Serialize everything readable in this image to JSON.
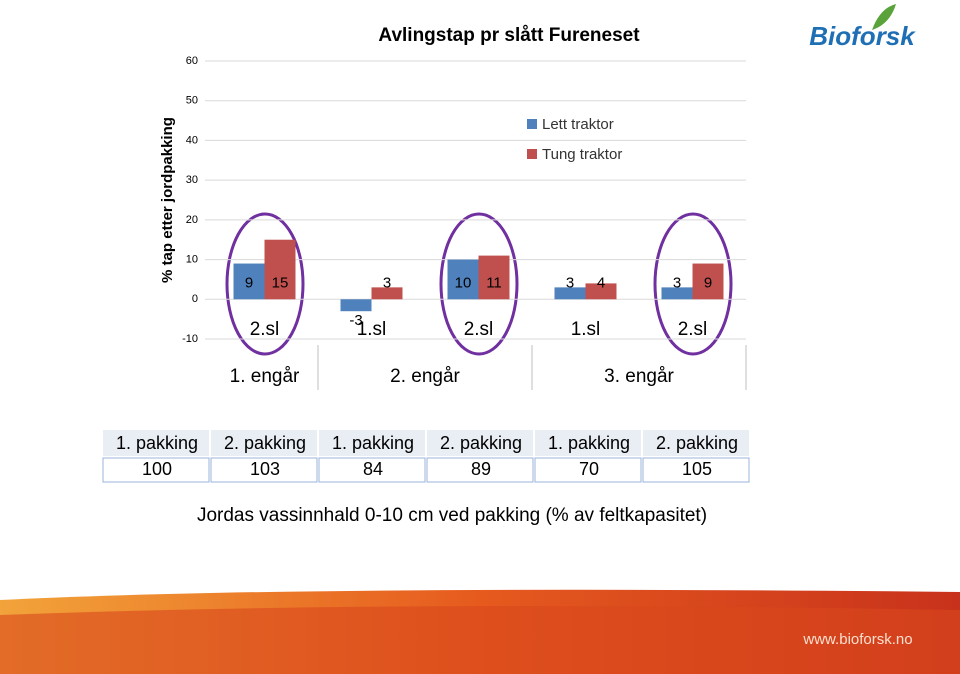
{
  "chart_data": {
    "type": "bar",
    "title": "Avlingstap pr slått Fureneset",
    "y_label": "% tap etter jordpakking",
    "categories": [
      "2.sl",
      "1.sl",
      "2.sl",
      "1.sl",
      "2.sl"
    ],
    "groups": [
      "1. engår",
      "2. engår",
      "3. engår"
    ],
    "series": [
      {
        "name": "Lett traktor",
        "color": "#4f81bd",
        "values": [
          9,
          -3,
          10,
          3,
          3
        ]
      },
      {
        "name": "Tung traktor",
        "color": "#c0504d",
        "values": [
          15,
          3,
          11,
          4,
          9
        ]
      }
    ],
    "ylim": [
      -10,
      60
    ],
    "yticks": [
      -10,
      0,
      10,
      20,
      30,
      40,
      50,
      60
    ],
    "grid": true,
    "legend": "upper right"
  },
  "table": {
    "header": [
      "1. pakking",
      "2. pakking",
      "1. pakking",
      "2. pakking",
      "1. pakking",
      "2. pakking"
    ],
    "values": [
      100,
      103,
      84,
      89,
      70,
      105
    ],
    "caption": "Jordas vassinnhald 0-10 cm ved pakking (% av feltkapasitet)"
  },
  "logo": "Bioforsk",
  "url": "www.bioforsk.no"
}
